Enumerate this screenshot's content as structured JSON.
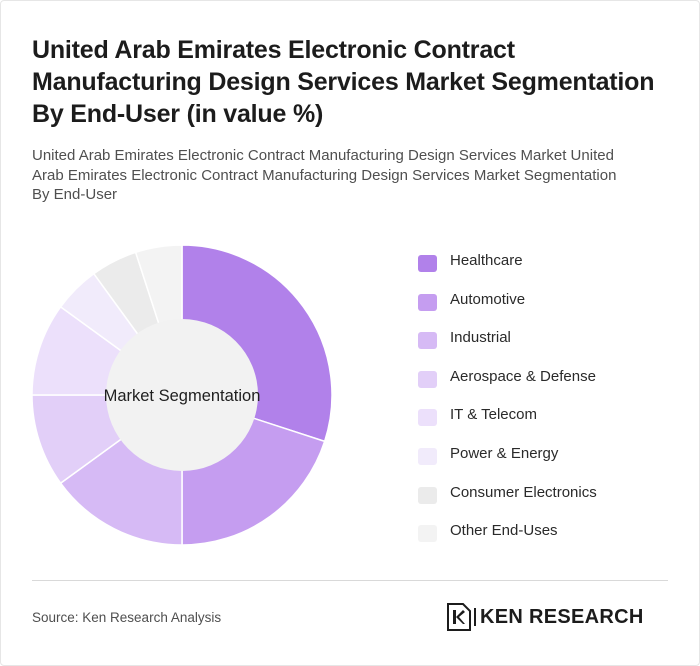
{
  "title": "United Arab Emirates Electronic Contract Manufacturing Design Services Market Segmentation By End-User (in value %)",
  "subtitle": "United Arab Emirates Electronic Contract Manufacturing Design Services Market United Arab Emirates Electronic Contract Manufacturing Design Services Market Segmentation By End-User",
  "chart_data": {
    "type": "pie",
    "variant": "donut",
    "center_label": "Market Segmentation",
    "legend_position": "right",
    "categories": [
      "Healthcare",
      "Automotive",
      "Industrial",
      "Aerospace & Defense",
      "IT & Telecom",
      "Power & Energy",
      "Consumer Electronics",
      "Other End-Uses"
    ],
    "values": [
      30,
      20,
      15,
      10,
      10,
      5,
      5,
      5
    ],
    "colors": [
      "#b181ea",
      "#c59df0",
      "#d6baf5",
      "#e2cff8",
      "#ece0fb",
      "#f1ebfb",
      "#ebebeb",
      "#f3f3f3"
    ],
    "center_color": "#f2f2f2"
  },
  "footer": {
    "source": "Source: Ken Research Analysis",
    "logo_text": "KEN RESEARCH",
    "logo_icon": "ken-research-k-icon"
  }
}
